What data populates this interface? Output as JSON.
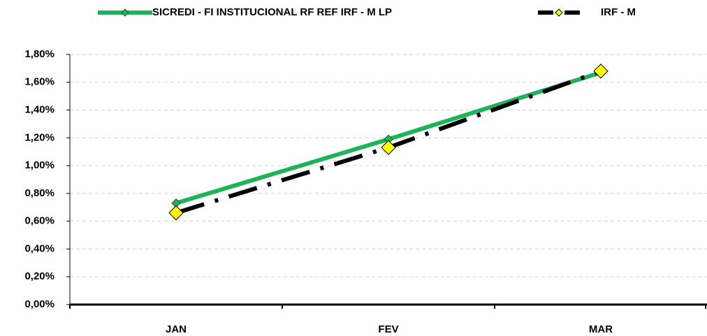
{
  "chart_data": {
    "type": "line",
    "categories": [
      "JAN",
      "FEV",
      "MAR"
    ],
    "series": [
      {
        "name": "SICREDI - FI INSTITUCIONAL RF REF IRF - M LP",
        "color": "#1fb25a",
        "marker_color": "#1fb25a",
        "dash": "solid",
        "values": [
          0.73,
          1.19,
          1.67
        ]
      },
      {
        "name": "IRF - M",
        "color": "#000000",
        "marker_color": "#ffff00",
        "dash": "dashdot",
        "values": [
          0.66,
          1.13,
          1.68
        ]
      }
    ],
    "ylim": [
      0,
      1.8
    ],
    "yticks": [
      {
        "value": 0,
        "label": "0,00%"
      },
      {
        "value": 0.2,
        "label": "0,20%"
      },
      {
        "value": 0.4,
        "label": "0,40%"
      },
      {
        "value": 0.6,
        "label": "0,60%"
      },
      {
        "value": 0.8,
        "label": "0,80%"
      },
      {
        "value": 1.0,
        "label": "1,00%"
      },
      {
        "value": 1.2,
        "label": "1,20%"
      },
      {
        "value": 1.4,
        "label": "1,40%"
      },
      {
        "value": 1.6,
        "label": "1,60%"
      },
      {
        "value": 1.8,
        "label": "1,80%"
      }
    ],
    "grid": true,
    "legend": "top"
  }
}
